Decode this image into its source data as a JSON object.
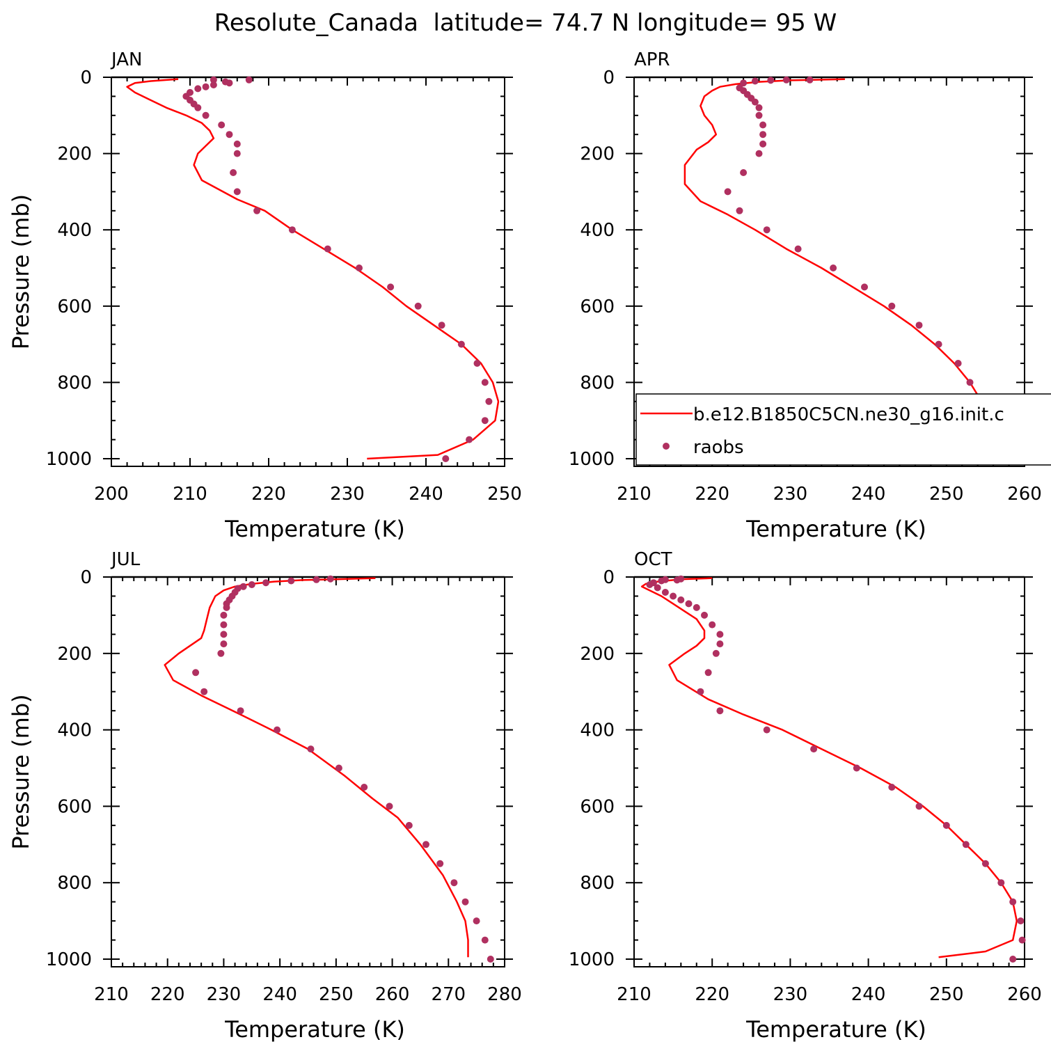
{
  "figure_title": "Resolute_Canada  latitude= 74.7 N longitude= 95 W",
  "colors": {
    "model": "#ff0000",
    "obs": "#b03060",
    "axis": "#000000"
  },
  "legend": {
    "model_label": "b.e12.B1850C5CN.ne30_g16.init.c",
    "obs_label": "raobs"
  },
  "chart_data": [
    {
      "type": "line",
      "panel": "JAN",
      "xlabel": "Temperature (K)",
      "ylabel": "Pressure (mb)",
      "xlim": [
        200,
        250
      ],
      "ylim": [
        1020,
        0
      ],
      "xticks": [
        200,
        210,
        220,
        230,
        240,
        250
      ],
      "yticks": [
        0,
        200,
        400,
        600,
        800,
        1000
      ],
      "series": [
        {
          "marker": "line",
          "color": "#ff0000",
          "points": [
            [
              208.5,
              5
            ],
            [
              205,
              10
            ],
            [
              203,
              15
            ],
            [
              202,
              25
            ],
            [
              203,
              40
            ],
            [
              205,
              60
            ],
            [
              207,
              80
            ],
            [
              209.5,
              100
            ],
            [
              211.5,
              120
            ],
            [
              212.5,
              140
            ],
            [
              213,
              160
            ],
            [
              212,
              180
            ],
            [
              211,
              200
            ],
            [
              210.5,
              230
            ],
            [
              211.5,
              270
            ],
            [
              216,
              320
            ],
            [
              219.5,
              350
            ],
            [
              223,
              400
            ],
            [
              227,
              450
            ],
            [
              231,
              500
            ],
            [
              234.5,
              550
            ],
            [
              237.5,
              600
            ],
            [
              241,
              650
            ],
            [
              244.5,
              700
            ],
            [
              247,
              750
            ],
            [
              248.5,
              800
            ],
            [
              249.2,
              850
            ],
            [
              248.8,
              900
            ],
            [
              246,
              950
            ],
            [
              241.5,
              990
            ],
            [
              232.5,
              1000
            ]
          ]
        },
        {
          "marker": "dot",
          "color": "#b03060",
          "points": [
            [
              217.5,
              7
            ],
            [
              213,
              7
            ],
            [
              214.5,
              12
            ],
            [
              215,
              15
            ],
            [
              213,
              20
            ],
            [
              212,
              25
            ],
            [
              211,
              30
            ],
            [
              210,
              40
            ],
            [
              209.5,
              50
            ],
            [
              210,
              60
            ],
            [
              210.5,
              70
            ],
            [
              211,
              80
            ],
            [
              212,
              100
            ],
            [
              214,
              125
            ],
            [
              215,
              150
            ],
            [
              216,
              175
            ],
            [
              216,
              200
            ],
            [
              215.5,
              250
            ],
            [
              216,
              300
            ],
            [
              218.5,
              350
            ],
            [
              223,
              400
            ],
            [
              227.5,
              450
            ],
            [
              231.5,
              500
            ],
            [
              235.5,
              550
            ],
            [
              239,
              600
            ],
            [
              242,
              650
            ],
            [
              244.5,
              700
            ],
            [
              246.5,
              750
            ],
            [
              247.5,
              800
            ],
            [
              248,
              850
            ],
            [
              247.5,
              900
            ],
            [
              245.5,
              950
            ],
            [
              242.5,
              1000
            ]
          ]
        }
      ]
    },
    {
      "type": "line",
      "panel": "APR",
      "xlabel": "Temperature (K)",
      "ylabel": "",
      "xlim": [
        210,
        260
      ],
      "ylim": [
        1020,
        0
      ],
      "xticks": [
        210,
        220,
        230,
        240,
        250,
        260
      ],
      "yticks": [
        0,
        200,
        400,
        600,
        800,
        1000
      ],
      "series": [
        {
          "marker": "line",
          "color": "#ff0000",
          "points": [
            [
              237,
              5
            ],
            [
              230,
              8
            ],
            [
              226,
              12
            ],
            [
              223,
              18
            ],
            [
              221,
              25
            ],
            [
              220,
              35
            ],
            [
              219,
              50
            ],
            [
              218.5,
              75
            ],
            [
              219,
              100
            ],
            [
              220,
              125
            ],
            [
              220.5,
              150
            ],
            [
              219.5,
              170
            ],
            [
              218,
              190
            ],
            [
              216.5,
              230
            ],
            [
              216.5,
              280
            ],
            [
              218.5,
              325
            ],
            [
              222,
              360
            ],
            [
              225.5,
              400
            ],
            [
              229.5,
              450
            ],
            [
              234,
              500
            ],
            [
              238,
              550
            ],
            [
              242,
              600
            ],
            [
              245.5,
              650
            ],
            [
              248.5,
              700
            ],
            [
              251,
              750
            ],
            [
              253,
              800
            ],
            [
              254.5,
              850
            ],
            [
              254.8,
              900
            ],
            [
              253.8,
              950
            ],
            [
              250,
              990
            ],
            [
              246,
              1005
            ]
          ]
        },
        {
          "marker": "dot",
          "color": "#b03060",
          "points": [
            [
              232.5,
              7
            ],
            [
              229.5,
              7
            ],
            [
              227.5,
              8
            ],
            [
              225.5,
              10
            ],
            [
              224,
              15
            ],
            [
              223.5,
              28
            ],
            [
              224,
              35
            ],
            [
              224.5,
              45
            ],
            [
              225,
              55
            ],
            [
              225.5,
              65
            ],
            [
              226,
              80
            ],
            [
              226,
              100
            ],
            [
              226.5,
              125
            ],
            [
              226.5,
              150
            ],
            [
              226.5,
              175
            ],
            [
              226,
              200
            ],
            [
              224,
              250
            ],
            [
              222,
              300
            ],
            [
              223.5,
              350
            ],
            [
              227,
              400
            ],
            [
              231,
              450
            ],
            [
              235.5,
              500
            ],
            [
              239.5,
              550
            ],
            [
              243,
              600
            ],
            [
              246.5,
              650
            ],
            [
              249,
              700
            ],
            [
              251.5,
              750
            ],
            [
              253,
              800
            ],
            [
              254,
              850
            ],
            [
              254.2,
              900
            ],
            [
              253.5,
              950
            ],
            [
              251,
              1000
            ]
          ]
        }
      ]
    },
    {
      "type": "line",
      "panel": "JUL",
      "xlabel": "Temperature (K)",
      "ylabel": "Pressure (mb)",
      "xlim": [
        210,
        280
      ],
      "ylim": [
        1020,
        0
      ],
      "xticks": [
        210,
        220,
        230,
        240,
        250,
        260,
        270,
        280
      ],
      "yticks": [
        0,
        200,
        400,
        600,
        800,
        1000
      ],
      "series": [
        {
          "marker": "line",
          "color": "#ff0000",
          "points": [
            [
              257,
              3
            ],
            [
              250,
              6
            ],
            [
              244,
              8
            ],
            [
              239,
              12
            ],
            [
              235,
              18
            ],
            [
              232,
              25
            ],
            [
              230,
              35
            ],
            [
              228.5,
              50
            ],
            [
              227.5,
              80
            ],
            [
              227,
              110
            ],
            [
              226.5,
              140
            ],
            [
              226,
              160
            ],
            [
              224,
              180
            ],
            [
              222,
              200
            ],
            [
              219.5,
              230
            ],
            [
              221,
              270
            ],
            [
              226,
              310
            ],
            [
              233,
              360
            ],
            [
              238.5,
              400
            ],
            [
              245,
              450
            ],
            [
              251.5,
              520
            ],
            [
              256.5,
              580
            ],
            [
              261,
              630
            ],
            [
              265,
              700
            ],
            [
              269,
              780
            ],
            [
              271.5,
              850
            ],
            [
              273,
              900
            ],
            [
              273.5,
              950
            ],
            [
              273.5,
              995
            ]
          ]
        },
        {
          "marker": "dot",
          "color": "#b03060",
          "points": [
            [
              249,
              5
            ],
            [
              246.5,
              7
            ],
            [
              242,
              10
            ],
            [
              237.5,
              15
            ],
            [
              235,
              20
            ],
            [
              233.5,
              25
            ],
            [
              232.5,
              30
            ],
            [
              232,
              40
            ],
            [
              231.5,
              50
            ],
            [
              231,
              60
            ],
            [
              230.5,
              70
            ],
            [
              230.5,
              80
            ],
            [
              230,
              100
            ],
            [
              230,
              125
            ],
            [
              230,
              150
            ],
            [
              230,
              175
            ],
            [
              229.5,
              200
            ],
            [
              225,
              250
            ],
            [
              226.5,
              300
            ],
            [
              233,
              350
            ],
            [
              239.5,
              400
            ],
            [
              245.5,
              450
            ],
            [
              250.5,
              500
            ],
            [
              255,
              550
            ],
            [
              259.5,
              600
            ],
            [
              263,
              650
            ],
            [
              266,
              700
            ],
            [
              268.5,
              750
            ],
            [
              271,
              800
            ],
            [
              273,
              850
            ],
            [
              275,
              900
            ],
            [
              276.5,
              950
            ],
            [
              277.5,
              1000
            ]
          ]
        }
      ]
    },
    {
      "type": "line",
      "panel": "OCT",
      "xlabel": "Temperature (K)",
      "ylabel": "",
      "xlim": [
        210,
        260
      ],
      "ylim": [
        1020,
        0
      ],
      "xticks": [
        210,
        220,
        230,
        240,
        250,
        260
      ],
      "yticks": [
        0,
        200,
        400,
        600,
        800,
        1000
      ],
      "series": [
        {
          "marker": "line",
          "color": "#ff0000",
          "points": [
            [
              220,
              3
            ],
            [
              216,
              6
            ],
            [
              213,
              12
            ],
            [
              211.5,
              18
            ],
            [
              211,
              25
            ],
            [
              212,
              35
            ],
            [
              213.5,
              50
            ],
            [
              215,
              70
            ],
            [
              216.5,
              90
            ],
            [
              218,
              110
            ],
            [
              219,
              140
            ],
            [
              219,
              160
            ],
            [
              218,
              180
            ],
            [
              216.5,
              200
            ],
            [
              214.5,
              230
            ],
            [
              215.5,
              270
            ],
            [
              219.5,
              320
            ],
            [
              224,
              360
            ],
            [
              229,
              400
            ],
            [
              234,
              450
            ],
            [
              239,
              500
            ],
            [
              243.5,
              550
            ],
            [
              247,
              600
            ],
            [
              250,
              650
            ],
            [
              252.5,
              700
            ],
            [
              255,
              750
            ],
            [
              257,
              800
            ],
            [
              258.5,
              850
            ],
            [
              259,
              900
            ],
            [
              258.5,
              950
            ],
            [
              255,
              980
            ],
            [
              249,
              995
            ]
          ]
        },
        {
          "marker": "dot",
          "color": "#b03060",
          "points": [
            [
              216,
              5
            ],
            [
              214,
              7
            ],
            [
              215.5,
              8
            ],
            [
              213.5,
              10
            ],
            [
              212.5,
              15
            ],
            [
              212,
              20
            ],
            [
              213,
              28
            ],
            [
              214,
              40
            ],
            [
              215,
              50
            ],
            [
              216,
              60
            ],
            [
              217,
              70
            ],
            [
              218,
              80
            ],
            [
              219,
              100
            ],
            [
              220,
              125
            ],
            [
              221,
              150
            ],
            [
              221,
              175
            ],
            [
              220.5,
              200
            ],
            [
              219.5,
              250
            ],
            [
              218.5,
              300
            ],
            [
              221,
              350
            ],
            [
              227,
              400
            ],
            [
              233,
              450
            ],
            [
              238.5,
              500
            ],
            [
              243,
              550
            ],
            [
              246.5,
              600
            ],
            [
              250,
              650
            ],
            [
              252.5,
              700
            ],
            [
              255,
              750
            ],
            [
              257,
              800
            ],
            [
              258.5,
              850
            ],
            [
              259.5,
              900
            ],
            [
              259.7,
              950
            ],
            [
              258.5,
              1000
            ]
          ]
        }
      ]
    }
  ]
}
